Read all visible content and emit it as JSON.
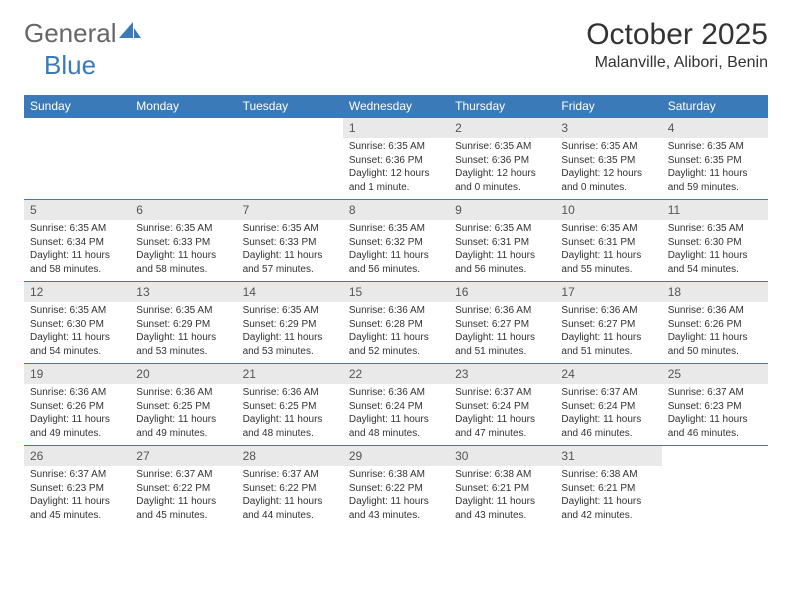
{
  "logo": {
    "part1": "General",
    "part2": "Blue"
  },
  "title": "October 2025",
  "location": "Malanville, Alibori, Benin",
  "colors": {
    "header_blue": "#3a7ab8",
    "daynum_bg": "#e9e9e9",
    "text": "#333333",
    "background": "#ffffff"
  },
  "weekdays": [
    "Sunday",
    "Monday",
    "Tuesday",
    "Wednesday",
    "Thursday",
    "Friday",
    "Saturday"
  ],
  "weeks": [
    [
      {
        "n": "",
        "s1": "",
        "s2": "",
        "s3": ""
      },
      {
        "n": "",
        "s1": "",
        "s2": "",
        "s3": ""
      },
      {
        "n": "",
        "s1": "",
        "s2": "",
        "s3": ""
      },
      {
        "n": "1",
        "s1": "Sunrise: 6:35 AM",
        "s2": "Sunset: 6:36 PM",
        "s3": "Daylight: 12 hours and 1 minute."
      },
      {
        "n": "2",
        "s1": "Sunrise: 6:35 AM",
        "s2": "Sunset: 6:36 PM",
        "s3": "Daylight: 12 hours and 0 minutes."
      },
      {
        "n": "3",
        "s1": "Sunrise: 6:35 AM",
        "s2": "Sunset: 6:35 PM",
        "s3": "Daylight: 12 hours and 0 minutes."
      },
      {
        "n": "4",
        "s1": "Sunrise: 6:35 AM",
        "s2": "Sunset: 6:35 PM",
        "s3": "Daylight: 11 hours and 59 minutes."
      }
    ],
    [
      {
        "n": "5",
        "s1": "Sunrise: 6:35 AM",
        "s2": "Sunset: 6:34 PM",
        "s3": "Daylight: 11 hours and 58 minutes."
      },
      {
        "n": "6",
        "s1": "Sunrise: 6:35 AM",
        "s2": "Sunset: 6:33 PM",
        "s3": "Daylight: 11 hours and 58 minutes."
      },
      {
        "n": "7",
        "s1": "Sunrise: 6:35 AM",
        "s2": "Sunset: 6:33 PM",
        "s3": "Daylight: 11 hours and 57 minutes."
      },
      {
        "n": "8",
        "s1": "Sunrise: 6:35 AM",
        "s2": "Sunset: 6:32 PM",
        "s3": "Daylight: 11 hours and 56 minutes."
      },
      {
        "n": "9",
        "s1": "Sunrise: 6:35 AM",
        "s2": "Sunset: 6:31 PM",
        "s3": "Daylight: 11 hours and 56 minutes."
      },
      {
        "n": "10",
        "s1": "Sunrise: 6:35 AM",
        "s2": "Sunset: 6:31 PM",
        "s3": "Daylight: 11 hours and 55 minutes."
      },
      {
        "n": "11",
        "s1": "Sunrise: 6:35 AM",
        "s2": "Sunset: 6:30 PM",
        "s3": "Daylight: 11 hours and 54 minutes."
      }
    ],
    [
      {
        "n": "12",
        "s1": "Sunrise: 6:35 AM",
        "s2": "Sunset: 6:30 PM",
        "s3": "Daylight: 11 hours and 54 minutes."
      },
      {
        "n": "13",
        "s1": "Sunrise: 6:35 AM",
        "s2": "Sunset: 6:29 PM",
        "s3": "Daylight: 11 hours and 53 minutes."
      },
      {
        "n": "14",
        "s1": "Sunrise: 6:35 AM",
        "s2": "Sunset: 6:29 PM",
        "s3": "Daylight: 11 hours and 53 minutes."
      },
      {
        "n": "15",
        "s1": "Sunrise: 6:36 AM",
        "s2": "Sunset: 6:28 PM",
        "s3": "Daylight: 11 hours and 52 minutes."
      },
      {
        "n": "16",
        "s1": "Sunrise: 6:36 AM",
        "s2": "Sunset: 6:27 PM",
        "s3": "Daylight: 11 hours and 51 minutes."
      },
      {
        "n": "17",
        "s1": "Sunrise: 6:36 AM",
        "s2": "Sunset: 6:27 PM",
        "s3": "Daylight: 11 hours and 51 minutes."
      },
      {
        "n": "18",
        "s1": "Sunrise: 6:36 AM",
        "s2": "Sunset: 6:26 PM",
        "s3": "Daylight: 11 hours and 50 minutes."
      }
    ],
    [
      {
        "n": "19",
        "s1": "Sunrise: 6:36 AM",
        "s2": "Sunset: 6:26 PM",
        "s3": "Daylight: 11 hours and 49 minutes."
      },
      {
        "n": "20",
        "s1": "Sunrise: 6:36 AM",
        "s2": "Sunset: 6:25 PM",
        "s3": "Daylight: 11 hours and 49 minutes."
      },
      {
        "n": "21",
        "s1": "Sunrise: 6:36 AM",
        "s2": "Sunset: 6:25 PM",
        "s3": "Daylight: 11 hours and 48 minutes."
      },
      {
        "n": "22",
        "s1": "Sunrise: 6:36 AM",
        "s2": "Sunset: 6:24 PM",
        "s3": "Daylight: 11 hours and 48 minutes."
      },
      {
        "n": "23",
        "s1": "Sunrise: 6:37 AM",
        "s2": "Sunset: 6:24 PM",
        "s3": "Daylight: 11 hours and 47 minutes."
      },
      {
        "n": "24",
        "s1": "Sunrise: 6:37 AM",
        "s2": "Sunset: 6:24 PM",
        "s3": "Daylight: 11 hours and 46 minutes."
      },
      {
        "n": "25",
        "s1": "Sunrise: 6:37 AM",
        "s2": "Sunset: 6:23 PM",
        "s3": "Daylight: 11 hours and 46 minutes."
      }
    ],
    [
      {
        "n": "26",
        "s1": "Sunrise: 6:37 AM",
        "s2": "Sunset: 6:23 PM",
        "s3": "Daylight: 11 hours and 45 minutes."
      },
      {
        "n": "27",
        "s1": "Sunrise: 6:37 AM",
        "s2": "Sunset: 6:22 PM",
        "s3": "Daylight: 11 hours and 45 minutes."
      },
      {
        "n": "28",
        "s1": "Sunrise: 6:37 AM",
        "s2": "Sunset: 6:22 PM",
        "s3": "Daylight: 11 hours and 44 minutes."
      },
      {
        "n": "29",
        "s1": "Sunrise: 6:38 AM",
        "s2": "Sunset: 6:22 PM",
        "s3": "Daylight: 11 hours and 43 minutes."
      },
      {
        "n": "30",
        "s1": "Sunrise: 6:38 AM",
        "s2": "Sunset: 6:21 PM",
        "s3": "Daylight: 11 hours and 43 minutes."
      },
      {
        "n": "31",
        "s1": "Sunrise: 6:38 AM",
        "s2": "Sunset: 6:21 PM",
        "s3": "Daylight: 11 hours and 42 minutes."
      },
      {
        "n": "",
        "s1": "",
        "s2": "",
        "s3": ""
      }
    ]
  ]
}
